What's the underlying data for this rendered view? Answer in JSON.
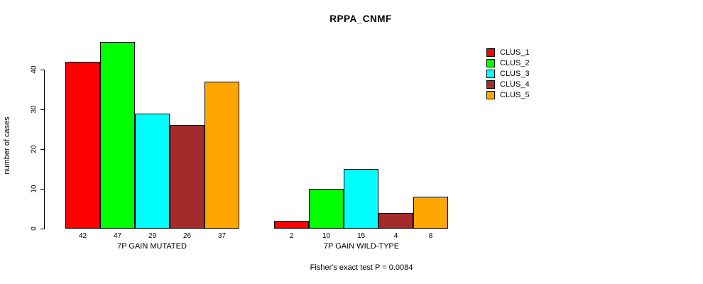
{
  "title": "RPPA_CNMF",
  "y_axis": {
    "label": "number of cases",
    "ticks": [
      0,
      10,
      20,
      30,
      40
    ]
  },
  "groups": {
    "group1_label": "7P GAIN MUTATED",
    "group2_label": "7P GAIN WILD-TYPE"
  },
  "footer": "Fisher's exact test P = 0.0084",
  "legend": {
    "items": [
      {
        "label": "CLUS_1",
        "color": "#FF0000"
      },
      {
        "label": "CLUS_2",
        "color": "#00FF00"
      },
      {
        "label": "CLUS_3",
        "color": "#00FFFF"
      },
      {
        "label": "CLUS_4",
        "color": "#A52A2A"
      },
      {
        "label": "CLUS_5",
        "color": "#FFA500"
      }
    ]
  },
  "chart_data": {
    "type": "bar",
    "title": "RPPA_CNMF",
    "xlabel": "",
    "ylabel": "number of cases",
    "ylim": [
      0,
      47
    ],
    "y_ticks": [
      0,
      10,
      20,
      30,
      40
    ],
    "grid": false,
    "legend_position": "right",
    "bar_value_labels": true,
    "categories": [
      "7P GAIN MUTATED",
      "7P GAIN WILD-TYPE"
    ],
    "series": [
      {
        "name": "CLUS_1",
        "color": "#FF0000",
        "values": [
          42,
          2
        ]
      },
      {
        "name": "CLUS_2",
        "color": "#00FF00",
        "values": [
          47,
          10
        ]
      },
      {
        "name": "CLUS_3",
        "color": "#00FFFF",
        "values": [
          29,
          15
        ]
      },
      {
        "name": "CLUS_4",
        "color": "#A52A2A",
        "values": [
          26,
          4
        ]
      },
      {
        "name": "CLUS_5",
        "color": "#FFA500",
        "values": [
          37,
          8
        ]
      }
    ],
    "annotation": "Fisher's exact test P = 0.0084"
  }
}
